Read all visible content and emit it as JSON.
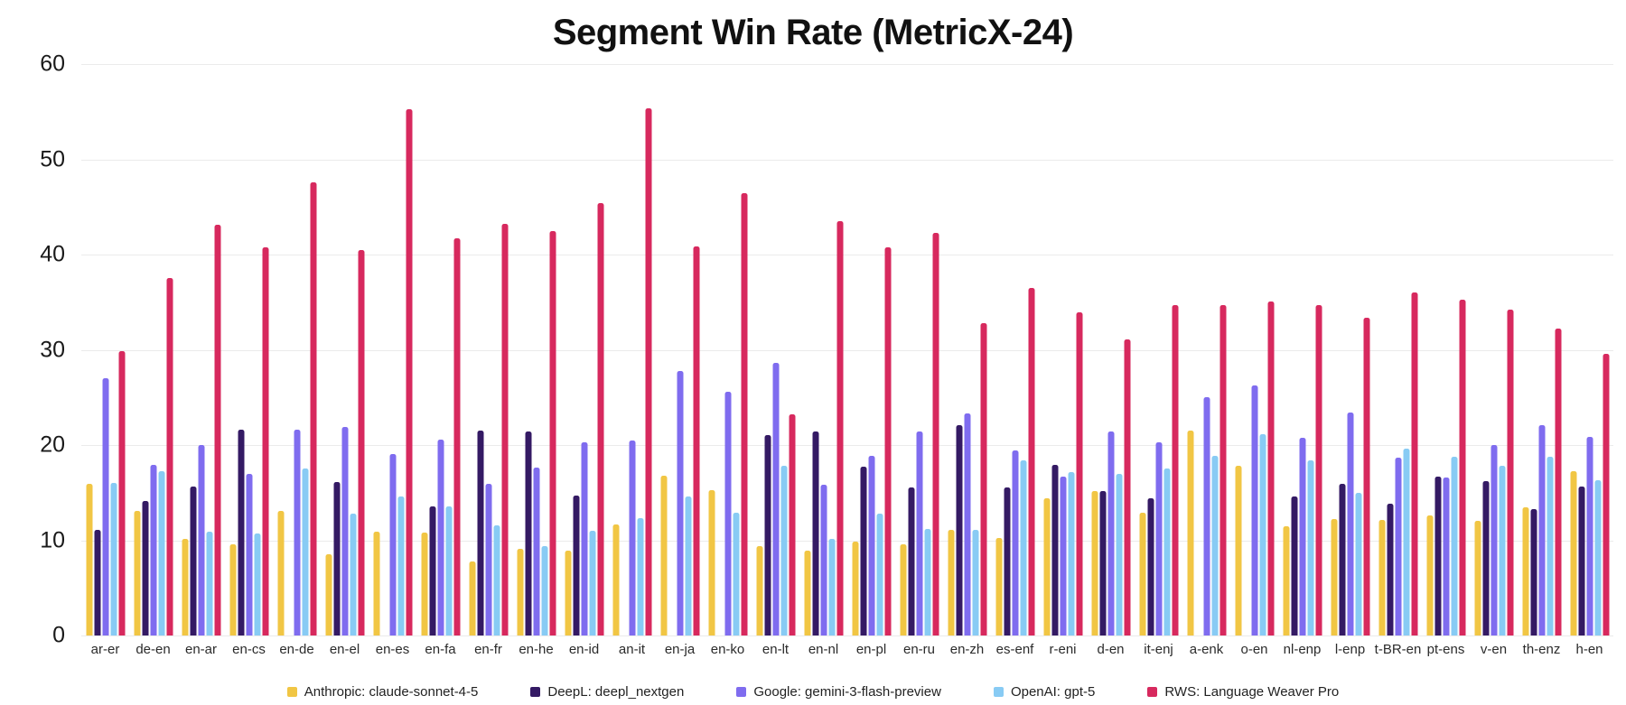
{
  "title": "Segment Win Rate (MetricX-24)",
  "chart_data": {
    "type": "bar",
    "title": "Segment Win Rate (MetricX-24)",
    "xlabel": "",
    "ylabel": "",
    "ylim": [
      0,
      60
    ],
    "yticks": [
      0,
      10,
      20,
      30,
      40,
      50,
      60
    ],
    "grid": "horizontal",
    "legend_position": "bottom",
    "categories": [
      "ar-er",
      "de-en",
      "en-ar",
      "en-cs",
      "en-de",
      "en-el",
      "en-es",
      "en-fa",
      "en-fr",
      "en-he",
      "en-id",
      "an-it",
      "en-ja",
      "en-ko",
      "en-lt",
      "en-nl",
      "en-pl",
      "en-ru",
      "en-zh",
      "es-enf",
      "r-eni",
      "d-en",
      "it-enj",
      "a-enk",
      "o-en",
      "nl-enp",
      "l-enp",
      "t-BR-en",
      "pt-ens",
      "v-en",
      "th-enz",
      "h-en"
    ],
    "series": [
      {
        "name": "Anthropic: claude-sonnet-4-5",
        "color": "#F1C644",
        "values": [
          15.9,
          13.1,
          10.1,
          9.6,
          13.1,
          8.5,
          10.9,
          10.8,
          7.8,
          9.1,
          8.9,
          11.7,
          16.8,
          15.3,
          9.4,
          8.9,
          9.9,
          9.6,
          11.1,
          10.2,
          14.4,
          15.2,
          12.9,
          21.5,
          17.8,
          11.5,
          12.2,
          12.1,
          12.6,
          12.0,
          13.5,
          17.3
        ]
      },
      {
        "name": "DeepL: deepl_nextgen",
        "color": "#341A64",
        "values": [
          11.1,
          14.1,
          15.6,
          21.6,
          null,
          16.1,
          null,
          13.6,
          21.5,
          21.4,
          14.7,
          null,
          null,
          null,
          21.0,
          21.4,
          17.7,
          15.5,
          22.1,
          15.5,
          17.9,
          15.2,
          14.4,
          null,
          null,
          14.6,
          15.9,
          13.8,
          16.7,
          16.2,
          13.3,
          15.6
        ]
      },
      {
        "name": "Google: gemini-3-flash-preview",
        "color": "#7F6CEF",
        "values": [
          27.0,
          17.9,
          20.0,
          17.0,
          21.6,
          21.9,
          19.1,
          20.6,
          15.9,
          17.6,
          20.3,
          20.5,
          27.8,
          25.6,
          28.6,
          15.8,
          18.9,
          21.4,
          23.3,
          19.4,
          16.7,
          21.4,
          20.3,
          25.0,
          26.3,
          20.8,
          23.4,
          18.7,
          16.6,
          20.0,
          22.1,
          20.9
        ]
      },
      {
        "name": "OpenAI: gpt-5",
        "color": "#88CBF4",
        "values": [
          16.0,
          17.3,
          10.9,
          10.7,
          17.5,
          12.8,
          14.6,
          13.6,
          11.6,
          9.4,
          11.0,
          12.3,
          14.6,
          12.9,
          17.8,
          10.1,
          12.8,
          11.2,
          11.1,
          18.4,
          17.2,
          17.0,
          17.5,
          18.9,
          21.1,
          18.4,
          15.0,
          19.6,
          18.8,
          17.8,
          18.8,
          16.3
        ]
      },
      {
        "name": "RWS: Language Weaver Pro",
        "color": "#D7295E",
        "values": [
          29.9,
          37.5,
          43.1,
          40.8,
          47.6,
          40.5,
          55.3,
          41.7,
          43.2,
          42.5,
          45.4,
          55.4,
          40.9,
          46.4,
          23.2,
          43.5,
          40.8,
          42.3,
          32.8,
          36.5,
          33.9,
          31.1,
          34.7,
          34.7,
          35.1,
          34.7,
          33.4,
          36.0,
          35.3,
          34.2,
          32.2,
          29.6
        ]
      }
    ]
  }
}
